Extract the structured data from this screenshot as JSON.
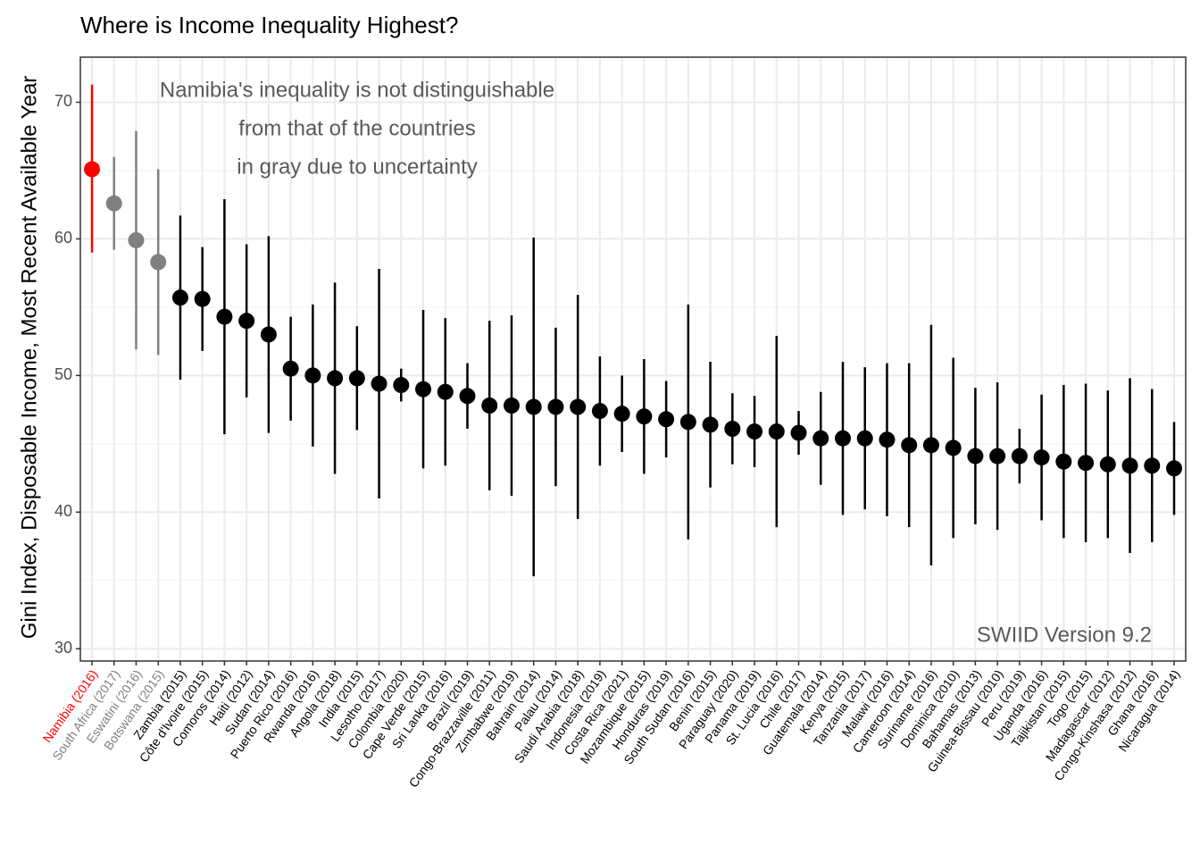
{
  "chart_data": {
    "type": "pointrange",
    "title": "Where is Income Inequality Highest?",
    "y_label": "Gini Index, Disposable Income, Most Recent Available Year",
    "annotation": [
      "Namibia's inequality is not distinguishable",
      "from that of the countries",
      "in gray due to uncertainty"
    ],
    "caption": "SWIID Version 9.2",
    "categories": [
      "Namibia (2016)",
      "South Africa (2017)",
      "Eswatini (2016)",
      "Botswana (2015)",
      "Zambia (2015)",
      "Côte d'Ivoire (2015)",
      "Comoros (2014)",
      "Haiti (2012)",
      "Sudan (2014)",
      "Puerto Rico (2016)",
      "Rwanda (2016)",
      "Angola (2018)",
      "India (2015)",
      "Lesotho (2017)",
      "Colombia (2020)",
      "Cape Verde (2015)",
      "Sri Lanka (2016)",
      "Brazil (2019)",
      "Congo-Brazzaville (2011)",
      "Zimbabwe (2019)",
      "Bahrain (2014)",
      "Palau (2014)",
      "Saudi Arabia (2018)",
      "Indonesia (2019)",
      "Costa Rica (2021)",
      "Mozambique (2015)",
      "Honduras (2019)",
      "South Sudan (2016)",
      "Benin (2015)",
      "Paraguay (2020)",
      "Panama (2019)",
      "St. Lucia (2016)",
      "Chile (2017)",
      "Guatemala (2014)",
      "Kenya (2015)",
      "Tanzania (2017)",
      "Malawi (2016)",
      "Cameroon (2014)",
      "Suriname (2016)",
      "Dominica (2010)",
      "Bahamas (2013)",
      "Guinea-Bissau (2010)",
      "Peru (2019)",
      "Uganda (2016)",
      "Tajikistan (2015)",
      "Togo (2015)",
      "Madagascar (2012)",
      "Congo-Kinshasa (2012)",
      "Ghana (2016)",
      "Nicaragua (2014)"
    ],
    "values": [
      65.1,
      62.6,
      59.9,
      58.3,
      55.7,
      55.6,
      54.3,
      54.0,
      53.0,
      50.5,
      50.0,
      49.8,
      49.8,
      49.4,
      49.3,
      49.0,
      48.8,
      48.5,
      47.8,
      47.8,
      47.7,
      47.7,
      47.7,
      47.4,
      47.2,
      47.0,
      46.8,
      46.6,
      46.4,
      46.1,
      45.9,
      45.9,
      45.8,
      45.4,
      45.4,
      45.4,
      45.3,
      44.9,
      44.9,
      44.7,
      44.1,
      44.1,
      44.1,
      44.0,
      43.7,
      43.6,
      43.5,
      43.4,
      43.4,
      43.2
    ],
    "lower": [
      59.0,
      59.2,
      51.9,
      51.5,
      49.7,
      51.8,
      45.7,
      48.4,
      45.8,
      46.7,
      44.8,
      42.8,
      46.0,
      41.0,
      48.1,
      43.2,
      43.4,
      46.1,
      41.6,
      41.2,
      35.3,
      41.9,
      39.5,
      43.4,
      44.4,
      42.8,
      44.0,
      38.0,
      41.8,
      43.5,
      43.3,
      38.9,
      44.2,
      42.0,
      39.8,
      40.2,
      39.7,
      38.9,
      36.1,
      38.1,
      39.1,
      38.7,
      42.1,
      39.4,
      38.1,
      37.8,
      38.1,
      37.0,
      37.8,
      39.8
    ],
    "upper": [
      71.3,
      66.0,
      67.9,
      65.1,
      61.7,
      59.4,
      62.9,
      59.6,
      60.2,
      54.3,
      55.2,
      56.8,
      53.6,
      57.8,
      50.5,
      54.8,
      54.2,
      50.9,
      54.0,
      54.4,
      60.1,
      53.5,
      55.9,
      51.4,
      50.0,
      51.2,
      49.6,
      55.2,
      51.0,
      48.7,
      48.5,
      52.9,
      47.4,
      48.8,
      51.0,
      50.6,
      50.9,
      50.9,
      53.7,
      51.3,
      49.1,
      49.5,
      46.1,
      48.6,
      49.3,
      49.4,
      48.9,
      49.8,
      49.0,
      46.6
    ],
    "colors": [
      "#ff0000",
      "#808080",
      "#808080",
      "#808080",
      "#000000",
      "#000000",
      "#000000",
      "#000000",
      "#000000",
      "#000000",
      "#000000",
      "#000000",
      "#000000",
      "#000000",
      "#000000",
      "#000000",
      "#000000",
      "#000000",
      "#000000",
      "#000000",
      "#000000",
      "#000000",
      "#000000",
      "#000000",
      "#000000",
      "#000000",
      "#000000",
      "#000000",
      "#000000",
      "#000000",
      "#000000",
      "#000000",
      "#000000",
      "#000000",
      "#000000",
      "#000000",
      "#000000",
      "#000000",
      "#000000",
      "#000000",
      "#000000",
      "#000000",
      "#000000",
      "#000000",
      "#000000",
      "#000000",
      "#000000",
      "#000000",
      "#000000",
      "#000000"
    ],
    "ylim": [
      29.1,
      73.3
    ],
    "yticks": [
      30,
      40,
      50,
      60,
      70
    ],
    "minor_yticks": [
      35,
      45,
      55,
      65
    ],
    "grid": true
  }
}
